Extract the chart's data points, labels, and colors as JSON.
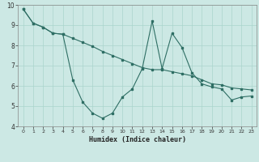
{
  "xlabel": "Humidex (Indice chaleur)",
  "background_color": "#cce8e4",
  "grid_color": "#aad4cc",
  "line_color": "#2e6e64",
  "xlim": [
    -0.5,
    23.5
  ],
  "ylim": [
    4,
    10
  ],
  "yticks": [
    4,
    5,
    6,
    7,
    8,
    9,
    10
  ],
  "xticks": [
    0,
    1,
    2,
    3,
    4,
    5,
    6,
    7,
    8,
    9,
    10,
    11,
    12,
    13,
    14,
    15,
    16,
    17,
    18,
    19,
    20,
    21,
    22,
    23
  ],
  "series1_x": [
    0,
    1,
    2,
    3,
    4,
    5,
    6,
    7,
    8,
    9,
    10,
    11,
    12,
    13,
    14,
    15,
    16,
    17,
    18,
    19,
    20,
    21,
    22,
    23
  ],
  "series1_y": [
    9.8,
    9.1,
    8.9,
    8.6,
    8.55,
    6.3,
    5.2,
    4.65,
    4.4,
    4.65,
    5.45,
    5.85,
    6.85,
    9.2,
    6.85,
    8.6,
    7.9,
    6.65,
    6.1,
    5.95,
    5.85,
    5.3,
    5.45,
    5.5
  ],
  "series2_x": [
    0,
    1,
    2,
    3,
    4,
    5,
    6,
    7,
    8,
    9,
    10,
    11,
    12,
    13,
    14,
    15,
    16,
    17,
    18,
    19,
    20,
    21,
    22,
    23
  ],
  "series2_y": [
    9.8,
    9.1,
    8.9,
    8.6,
    8.55,
    8.35,
    8.15,
    7.95,
    7.7,
    7.5,
    7.3,
    7.1,
    6.9,
    6.8,
    6.8,
    6.7,
    6.6,
    6.5,
    6.3,
    6.1,
    6.05,
    5.9,
    5.85,
    5.8
  ]
}
